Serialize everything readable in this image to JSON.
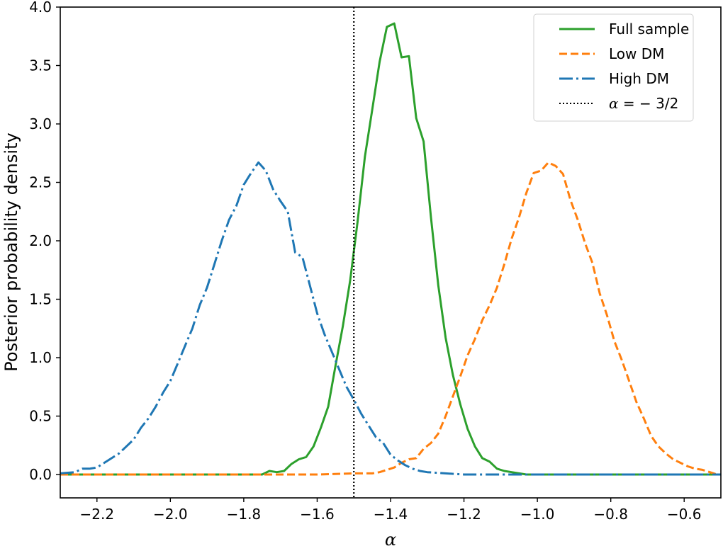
{
  "chart_data": {
    "type": "line",
    "title": "",
    "xlabel": "α",
    "ylabel": "Posterior probability density",
    "xlim": [
      -2.3,
      -0.5
    ],
    "ylim": [
      -0.2,
      4.0
    ],
    "xticks": [
      -2.2,
      -2.0,
      -1.8,
      -1.6,
      -1.4,
      -1.2,
      -1.0,
      -0.8,
      -0.6
    ],
    "xtick_labels": [
      "−2.2",
      "−2.0",
      "−1.8",
      "−1.6",
      "−1.4",
      "−1.2",
      "−1.0",
      "−0.8",
      "−0.6"
    ],
    "yticks": [
      0.0,
      0.5,
      1.0,
      1.5,
      2.0,
      2.5,
      3.0,
      3.5,
      4.0
    ],
    "ytick_labels": [
      "0.0",
      "0.5",
      "1.0",
      "1.5",
      "2.0",
      "2.5",
      "3.0",
      "3.5",
      "4.0"
    ],
    "grid": false,
    "legend_position": "upper right",
    "series": [
      {
        "name": "Full sample",
        "color": "#2ca02c",
        "style": "solid",
        "x": [
          -2.3,
          -1.75,
          -1.73,
          -1.71,
          -1.69,
          -1.67,
          -1.65,
          -1.63,
          -1.61,
          -1.59,
          -1.57,
          -1.55,
          -1.53,
          -1.51,
          -1.49,
          -1.47,
          -1.45,
          -1.43,
          -1.41,
          -1.39,
          -1.37,
          -1.35,
          -1.33,
          -1.31,
          -1.29,
          -1.27,
          -1.25,
          -1.23,
          -1.21,
          -1.19,
          -1.17,
          -1.15,
          -1.13,
          -1.11,
          -1.09,
          -1.07,
          -1.05,
          -1.03,
          -1.01,
          -0.99,
          -0.97,
          -0.5
        ],
        "y": [
          0.0,
          0.0,
          0.03,
          0.02,
          0.03,
          0.09,
          0.13,
          0.15,
          0.24,
          0.4,
          0.58,
          0.93,
          1.27,
          1.66,
          2.16,
          2.72,
          3.12,
          3.53,
          3.83,
          3.86,
          3.57,
          3.58,
          3.05,
          2.85,
          2.2,
          1.62,
          1.17,
          0.85,
          0.6,
          0.39,
          0.24,
          0.14,
          0.11,
          0.05,
          0.03,
          0.02,
          0.01,
          0.0,
          0.0,
          0.0,
          0.0,
          0.0
        ]
      },
      {
        "name": "Low DM",
        "color": "#ff7f0e",
        "style": "dashed",
        "x": [
          -2.3,
          -1.6,
          -1.5,
          -1.45,
          -1.43,
          -1.41,
          -1.39,
          -1.37,
          -1.35,
          -1.33,
          -1.31,
          -1.29,
          -1.27,
          -1.25,
          -1.23,
          -1.21,
          -1.19,
          -1.17,
          -1.15,
          -1.13,
          -1.11,
          -1.09,
          -1.07,
          -1.05,
          -1.03,
          -1.01,
          -0.99,
          -0.97,
          -0.95,
          -0.93,
          -0.91,
          -0.89,
          -0.87,
          -0.85,
          -0.83,
          -0.81,
          -0.79,
          -0.77,
          -0.75,
          -0.73,
          -0.71,
          -0.69,
          -0.67,
          -0.65,
          -0.63,
          -0.61,
          -0.59,
          -0.57,
          -0.55,
          -0.53,
          -0.51
        ],
        "y": [
          0.0,
          0.0,
          0.01,
          0.01,
          0.02,
          0.04,
          0.06,
          0.1,
          0.13,
          0.14,
          0.22,
          0.27,
          0.35,
          0.5,
          0.67,
          0.84,
          1.02,
          1.16,
          1.32,
          1.45,
          1.6,
          1.8,
          2.02,
          2.2,
          2.41,
          2.58,
          2.6,
          2.67,
          2.64,
          2.57,
          2.35,
          2.18,
          1.98,
          1.81,
          1.55,
          1.36,
          1.14,
          0.98,
          0.8,
          0.62,
          0.48,
          0.33,
          0.24,
          0.18,
          0.13,
          0.1,
          0.07,
          0.05,
          0.04,
          0.02,
          0.0
        ]
      },
      {
        "name": "High DM",
        "color": "#1f77b4",
        "style": "dashdot",
        "x": [
          -2.3,
          -2.26,
          -2.24,
          -2.22,
          -2.2,
          -2.18,
          -2.16,
          -2.14,
          -2.12,
          -2.1,
          -2.08,
          -2.06,
          -2.04,
          -2.02,
          -2.0,
          -1.98,
          -1.96,
          -1.94,
          -1.92,
          -1.9,
          -1.88,
          -1.86,
          -1.84,
          -1.82,
          -1.8,
          -1.78,
          -1.76,
          -1.74,
          -1.72,
          -1.7,
          -1.68,
          -1.66,
          -1.64,
          -1.62,
          -1.6,
          -1.58,
          -1.56,
          -1.54,
          -1.52,
          -1.5,
          -1.48,
          -1.46,
          -1.44,
          -1.42,
          -1.4,
          -1.38,
          -1.36,
          -1.34,
          -1.32,
          -1.3,
          -1.25,
          -1.2,
          -1.1,
          -1.0,
          -0.5
        ],
        "y": [
          0.01,
          0.02,
          0.05,
          0.05,
          0.06,
          0.1,
          0.14,
          0.18,
          0.24,
          0.3,
          0.4,
          0.48,
          0.58,
          0.7,
          0.8,
          0.95,
          1.1,
          1.25,
          1.45,
          1.6,
          1.8,
          2.0,
          2.18,
          2.3,
          2.48,
          2.58,
          2.67,
          2.6,
          2.44,
          2.34,
          2.25,
          1.9,
          1.86,
          1.62,
          1.38,
          1.2,
          1.05,
          0.9,
          0.75,
          0.64,
          0.52,
          0.42,
          0.32,
          0.27,
          0.17,
          0.12,
          0.08,
          0.05,
          0.03,
          0.02,
          0.01,
          0.0,
          0.0,
          0.0,
          0.0
        ]
      },
      {
        "name": "α = −3/2",
        "color": "#000000",
        "style": "dotted",
        "type": "vline",
        "x": -1.5
      }
    ]
  },
  "legend": {
    "items": [
      {
        "label": "Full sample",
        "color": "#2ca02c",
        "style": "solid"
      },
      {
        "label": "Low DM",
        "color": "#ff7f0e",
        "style": "dashed"
      },
      {
        "label": "High DM",
        "color": "#1f77b4",
        "style": "dashdot"
      },
      {
        "label_math": "α = − 3/2",
        "color": "#000000",
        "style": "dotted"
      }
    ]
  },
  "axes": {
    "xlabel": "α",
    "ylabel": "Posterior probability density"
  }
}
